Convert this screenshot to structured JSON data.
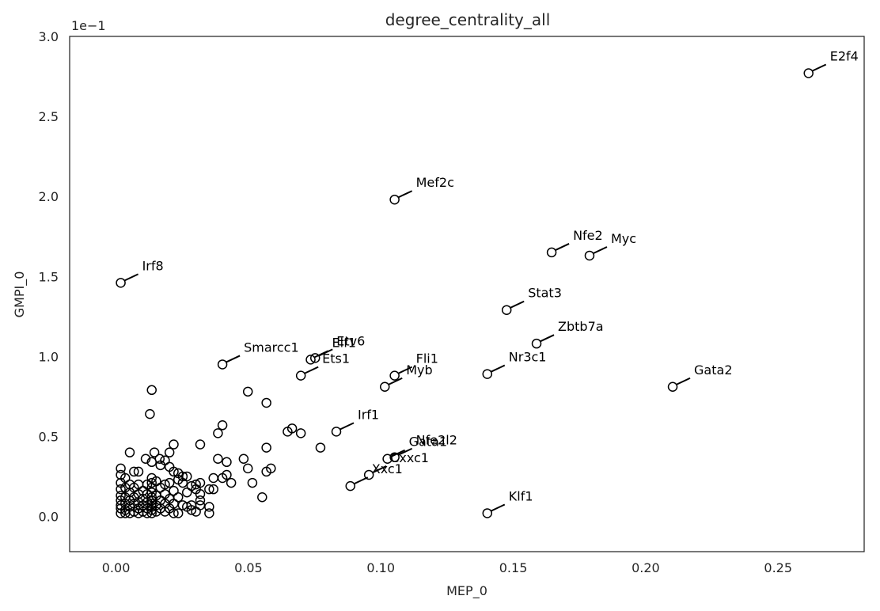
{
  "chart_data": {
    "type": "scatter",
    "title": "degree_centrality_all",
    "xlabel": "MEP_0",
    "ylabel": "GMPI_0",
    "y_offset_label": "1e−1",
    "xlim": [
      -0.0175,
      0.2825
    ],
    "ylim": [
      -0.22,
      3.0
    ],
    "x_ticks": [
      0.0,
      0.05,
      0.1,
      0.15,
      0.2,
      0.25
    ],
    "x_tick_labels": [
      "0.00",
      "0.05",
      "0.10",
      "0.15",
      "0.20",
      "0.25"
    ],
    "y_ticks": [
      0.0,
      0.5,
      1.0,
      1.5,
      2.0,
      2.5,
      3.0
    ],
    "y_tick_labels": [
      "0.0",
      "0.5",
      "1.0",
      "1.5",
      "2.0",
      "2.5",
      "3.0"
    ],
    "grid": false,
    "labeled_points": [
      {
        "label": "E2f4",
        "x": 0.2615,
        "y": 2.77
      },
      {
        "label": "Mef2c",
        "x": 0.1052,
        "y": 1.98
      },
      {
        "label": "Nfe2",
        "x": 0.1645,
        "y": 1.65
      },
      {
        "label": "Myc",
        "x": 0.1788,
        "y": 1.63
      },
      {
        "label": "Irf8",
        "x": 0.0018,
        "y": 1.46
      },
      {
        "label": "Stat3",
        "x": 0.1475,
        "y": 1.29
      },
      {
        "label": "Zbtb7a",
        "x": 0.1588,
        "y": 1.08
      },
      {
        "label": "Smarcc1",
        "x": 0.0402,
        "y": 0.95
      },
      {
        "label": "Etv6",
        "x": 0.0752,
        "y": 0.99
      },
      {
        "label": "Elf1",
        "x": 0.0735,
        "y": 0.98
      },
      {
        "label": "Ets1",
        "x": 0.0698,
        "y": 0.88
      },
      {
        "label": "Nr3c1",
        "x": 0.1402,
        "y": 0.89
      },
      {
        "label": "Fli1",
        "x": 0.1052,
        "y": 0.88
      },
      {
        "label": "Myb",
        "x": 0.1015,
        "y": 0.81
      },
      {
        "label": "Gata2",
        "x": 0.2102,
        "y": 0.81
      },
      {
        "label": "Irf1",
        "x": 0.0832,
        "y": 0.53
      },
      {
        "label": "Nfe2l2",
        "x": 0.1052,
        "y": 0.37
      },
      {
        "label": "Gata1",
        "x": 0.1025,
        "y": 0.36
      },
      {
        "label": "Cxxc1",
        "x": 0.0955,
        "y": 0.26
      },
      {
        "label": "Xxc1",
        "x": 0.0885,
        "y": 0.19
      },
      {
        "label": "Klf1",
        "x": 0.1402,
        "y": 0.02
      }
    ],
    "other_points": [
      [
        0.0135,
        0.79
      ],
      [
        0.0128,
        0.64
      ],
      [
        0.0052,
        0.4
      ],
      [
        0.0018,
        0.3
      ],
      [
        0.0018,
        0.26
      ],
      [
        0.0018,
        0.21
      ],
      [
        0.0018,
        0.17
      ],
      [
        0.0018,
        0.13
      ],
      [
        0.0018,
        0.1
      ],
      [
        0.0018,
        0.07
      ],
      [
        0.0018,
        0.05
      ],
      [
        0.0018,
        0.02
      ],
      [
        0.0035,
        0.24
      ],
      [
        0.0035,
        0.18
      ],
      [
        0.0035,
        0.12
      ],
      [
        0.0035,
        0.08
      ],
      [
        0.0035,
        0.04
      ],
      [
        0.0035,
        0.02
      ],
      [
        0.0052,
        0.2
      ],
      [
        0.0052,
        0.15
      ],
      [
        0.0052,
        0.1
      ],
      [
        0.0052,
        0.06
      ],
      [
        0.0052,
        0.02
      ],
      [
        0.0068,
        0.28
      ],
      [
        0.0068,
        0.18
      ],
      [
        0.0068,
        0.12
      ],
      [
        0.0068,
        0.08
      ],
      [
        0.0068,
        0.03
      ],
      [
        0.0085,
        0.28
      ],
      [
        0.0085,
        0.2
      ],
      [
        0.0085,
        0.14
      ],
      [
        0.0085,
        0.09
      ],
      [
        0.0085,
        0.05
      ],
      [
        0.0085,
        0.02
      ],
      [
        0.0102,
        0.16
      ],
      [
        0.0102,
        0.11
      ],
      [
        0.0102,
        0.07
      ],
      [
        0.0102,
        0.03
      ],
      [
        0.0112,
        0.36
      ],
      [
        0.0118,
        0.2
      ],
      [
        0.0118,
        0.14
      ],
      [
        0.0118,
        0.09
      ],
      [
        0.0118,
        0.05
      ],
      [
        0.0118,
        0.02
      ],
      [
        0.0135,
        0.34
      ],
      [
        0.0135,
        0.24
      ],
      [
        0.0135,
        0.21
      ],
      [
        0.0135,
        0.18
      ],
      [
        0.0135,
        0.15
      ],
      [
        0.0135,
        0.12
      ],
      [
        0.0135,
        0.1
      ],
      [
        0.0135,
        0.08
      ],
      [
        0.0135,
        0.06
      ],
      [
        0.0135,
        0.04
      ],
      [
        0.0135,
        0.02
      ],
      [
        0.0145,
        0.4
      ],
      [
        0.0152,
        0.22
      ],
      [
        0.0152,
        0.13
      ],
      [
        0.0152,
        0.07
      ],
      [
        0.0152,
        0.03
      ],
      [
        0.0165,
        0.36
      ],
      [
        0.0168,
        0.32
      ],
      [
        0.0168,
        0.18
      ],
      [
        0.0168,
        0.1
      ],
      [
        0.0168,
        0.05
      ],
      [
        0.0185,
        0.35
      ],
      [
        0.0185,
        0.2
      ],
      [
        0.0185,
        0.14
      ],
      [
        0.0185,
        0.08
      ],
      [
        0.0185,
        0.03
      ],
      [
        0.0202,
        0.4
      ],
      [
        0.0202,
        0.31
      ],
      [
        0.0202,
        0.21
      ],
      [
        0.0202,
        0.11
      ],
      [
        0.0202,
        0.05
      ],
      [
        0.0218,
        0.45
      ],
      [
        0.0218,
        0.28
      ],
      [
        0.0218,
        0.16
      ],
      [
        0.0218,
        0.08
      ],
      [
        0.0218,
        0.02
      ],
      [
        0.0235,
        0.27
      ],
      [
        0.0235,
        0.23
      ],
      [
        0.0235,
        0.12
      ],
      [
        0.0235,
        0.02
      ],
      [
        0.0252,
        0.25
      ],
      [
        0.0252,
        0.21
      ],
      [
        0.0252,
        0.07
      ],
      [
        0.0268,
        0.25
      ],
      [
        0.0268,
        0.15
      ],
      [
        0.0268,
        0.06
      ],
      [
        0.0285,
        0.19
      ],
      [
        0.0285,
        0.07
      ],
      [
        0.0285,
        0.04
      ],
      [
        0.0302,
        0.2
      ],
      [
        0.0302,
        0.17
      ],
      [
        0.0302,
        0.03
      ],
      [
        0.0318,
        0.45
      ],
      [
        0.0318,
        0.21
      ],
      [
        0.0318,
        0.14
      ],
      [
        0.0318,
        0.1
      ],
      [
        0.0318,
        0.07
      ],
      [
        0.0352,
        0.17
      ],
      [
        0.0352,
        0.06
      ],
      [
        0.0352,
        0.02
      ],
      [
        0.0368,
        0.24
      ],
      [
        0.0368,
        0.17
      ],
      [
        0.0385,
        0.52
      ],
      [
        0.0385,
        0.36
      ],
      [
        0.0402,
        0.57
      ],
      [
        0.0402,
        0.24
      ],
      [
        0.0418,
        0.34
      ],
      [
        0.0418,
        0.26
      ],
      [
        0.0435,
        0.21
      ],
      [
        0.0482,
        0.36
      ],
      [
        0.0498,
        0.78
      ],
      [
        0.0498,
        0.3
      ],
      [
        0.0515,
        0.21
      ],
      [
        0.0552,
        0.12
      ],
      [
        0.0568,
        0.71
      ],
      [
        0.0568,
        0.43
      ],
      [
        0.0568,
        0.28
      ],
      [
        0.0585,
        0.3
      ],
      [
        0.0648,
        0.53
      ],
      [
        0.0665,
        0.55
      ],
      [
        0.0698,
        0.52
      ],
      [
        0.0772,
        0.43
      ]
    ]
  }
}
